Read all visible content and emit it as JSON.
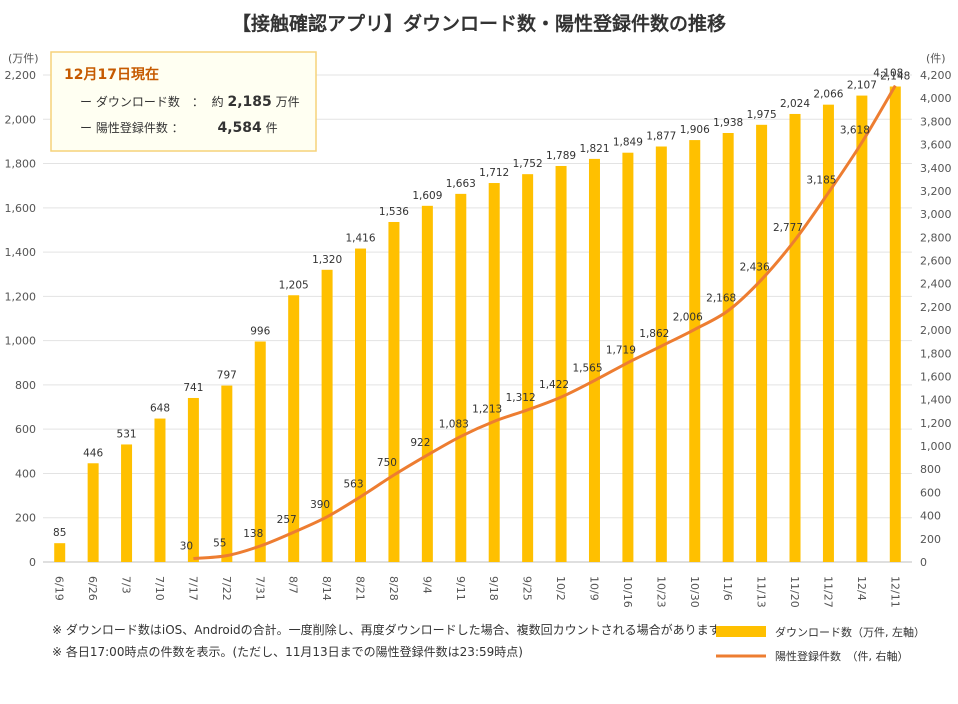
{
  "title": "【接触確認アプリ】ダウンロード数・陽性登録件数の推移",
  "info_box": {
    "heading": "12月17日現在",
    "download_label": "ー ダウンロード数　：",
    "download_prefix": "約",
    "download_value": "2,185",
    "download_unit": "万件",
    "positive_label": "ー 陽性登録件数 ：",
    "positive_value": "4,584",
    "positive_unit": "件"
  },
  "left_axis_unit": "(万件)",
  "right_axis_unit": "(件)",
  "notes": [
    "※ ダウンロード数はiOS、Androidの合計。一度削除し、再度ダウンロードした場合、複数回カウントされる場合があります。",
    "※ 各日17:00時点の件数を表示。(ただし、11月13日までの陽性登録件数は23:59時点)"
  ],
  "colors": {
    "bar": "#FFC000",
    "line": "#ED7D31",
    "title": "#333333",
    "heading": "#C65A00",
    "box_border": "#F5D27A",
    "box_fill": "#FFFFF2"
  },
  "chart_data": {
    "type": "bar",
    "title": "【接触確認アプリ】ダウンロード数・陽性登録件数の推移",
    "categories": [
      "6/19",
      "6/26",
      "7/3",
      "7/10",
      "7/17",
      "7/22",
      "7/31",
      "8/7",
      "8/14",
      "8/21",
      "8/28",
      "9/4",
      "9/11",
      "9/18",
      "9/25",
      "10/2",
      "10/9",
      "10/16",
      "10/23",
      "10/30",
      "11/6",
      "11/13",
      "11/20",
      "11/27",
      "12/4",
      "12/11"
    ],
    "series": [
      {
        "name": "ダウンロード数（万件, 左軸）",
        "type": "bar",
        "axis": "left",
        "values": [
          85,
          446,
          531,
          648,
          741,
          797,
          996,
          1205,
          1320,
          1416,
          1536,
          1609,
          1663,
          1712,
          1752,
          1789,
          1821,
          1849,
          1877,
          1906,
          1938,
          1975,
          2024,
          2066,
          2107,
          2148
        ],
        "labels": [
          "85",
          "446",
          "531",
          "648",
          "741",
          "797",
          "996",
          "1,205",
          "1,320",
          "1,416",
          "1,536",
          "1,609",
          "1,663",
          "1,712",
          "1,752",
          "1,789",
          "1,821",
          "1,849",
          "1,877",
          "1,906",
          "1,938",
          "1,975",
          "2,024",
          "2,066",
          "2,107",
          "2,148"
        ]
      },
      {
        "name": "陽性登録件数　（件, 右軸）",
        "type": "line",
        "axis": "right",
        "values": [
          null,
          null,
          null,
          null,
          30,
          55,
          138,
          257,
          390,
          563,
          750,
          922,
          1083,
          1213,
          1312,
          1422,
          1565,
          1719,
          1862,
          2006,
          2168,
          2436,
          2777,
          3185,
          3618,
          4108
        ],
        "labels": [
          "",
          "",
          "",
          "",
          "30",
          "55",
          "138",
          "257",
          "390",
          "563",
          "750",
          "922",
          "1,083",
          "1,213",
          "1,312",
          "1,422",
          "1,565",
          "1,719",
          "1,862",
          "2,006",
          "2,168",
          "2,436",
          "2,777",
          "3,185",
          "3,618",
          "4,108"
        ]
      }
    ],
    "y_left": {
      "min": 0,
      "max": 2200,
      "ticks": [
        0,
        200,
        400,
        600,
        800,
        1000,
        1200,
        1400,
        1600,
        1800,
        2000,
        2200
      ],
      "tick_labels": [
        "0",
        "200",
        "400",
        "600",
        "800",
        "1,000",
        "1,200",
        "1,400",
        "1,600",
        "1,800",
        "2,000",
        "2,200"
      ]
    },
    "y_right": {
      "min": 0,
      "max": 4200,
      "ticks": [
        0,
        200,
        400,
        600,
        800,
        1000,
        1200,
        1400,
        1600,
        1800,
        2000,
        2200,
        2400,
        2600,
        2800,
        3000,
        3200,
        3400,
        3600,
        3800,
        4000,
        4200
      ],
      "tick_labels": [
        "0",
        "200",
        "400",
        "600",
        "800",
        "1,000",
        "1,200",
        "1,400",
        "1,600",
        "1,800",
        "2,000",
        "2,200",
        "2,400",
        "2,600",
        "2,800",
        "3,000",
        "3,200",
        "3,400",
        "3,600",
        "3,800",
        "4,000",
        "4,200"
      ]
    },
    "grid": true,
    "legend_position": "bottom-right"
  }
}
